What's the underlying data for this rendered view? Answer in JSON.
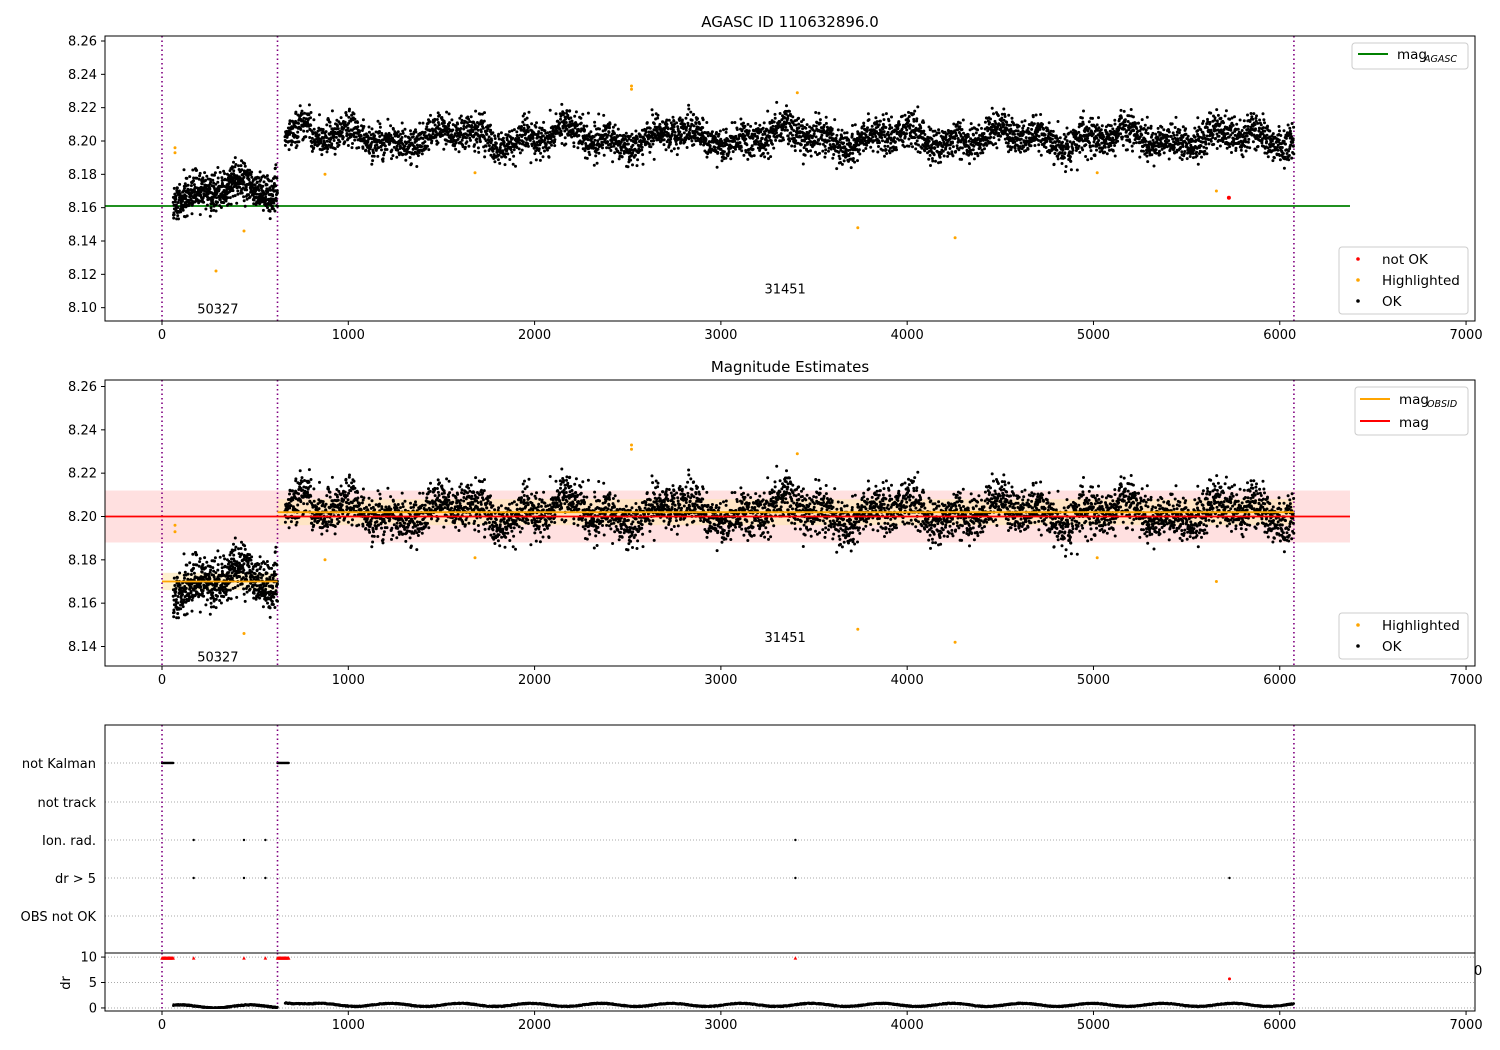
{
  "colors": {
    "ok": "#000000",
    "highlighted": "#ffa500",
    "not_ok": "#ff0000",
    "agasc": "#008000",
    "obsid_mag": "#ffa500",
    "mag": "#ff0000",
    "vline": "#800080",
    "band_mag": "#ffcccc",
    "band_obsid": "#ffe8b0"
  },
  "chart_data": [
    {
      "type": "scatter",
      "title": "AGASC ID 110632896.0",
      "xlim": [
        -306,
        7048
      ],
      "ylim": [
        8.092,
        8.263
      ],
      "xticks": [
        "0",
        "1000",
        "2000",
        "3000",
        "4000",
        "5000",
        "6000",
        "7000"
      ],
      "yticks": [
        "8.10",
        "8.12",
        "8.14",
        "8.16",
        "8.18",
        "8.20",
        "8.22",
        "8.24",
        "8.26"
      ],
      "legend_top": {
        "line_label": "mag",
        "line_sub": "AGASC"
      },
      "legend_bottom": [
        "not OK",
        "Highlighted",
        "OK"
      ],
      "hline": {
        "name": "mag_AGASC",
        "y": 8.161,
        "x": [
          -306,
          6377
        ]
      },
      "vlines": [
        0,
        620,
        6076
      ],
      "annotations": [
        {
          "text": "50327",
          "x": 300,
          "y": 8.099
        },
        {
          "text": "31451",
          "x": 3345,
          "y": 8.111
        }
      ],
      "segments": [
        {
          "obsid": "50327",
          "x": [
            60,
            620
          ],
          "mean": 8.17,
          "sd": 0.007
        },
        {
          "obsid": "31451",
          "x": [
            660,
            6076
          ],
          "mean": 8.202,
          "sd": 0.0065
        }
      ],
      "highlighted_outliers": [
        [
          290,
          8.122
        ],
        [
          440,
          8.146
        ],
        [
          3735,
          8.148
        ],
        [
          4257,
          8.142
        ],
        [
          70,
          8.196
        ],
        [
          70,
          8.193
        ],
        [
          2520,
          8.233
        ],
        [
          2520,
          8.231
        ],
        [
          3410,
          8.229
        ],
        [
          5660,
          8.17
        ],
        [
          875,
          8.18
        ],
        [
          1680,
          8.181
        ],
        [
          5020,
          8.181
        ]
      ],
      "not_ok_points": [
        [
          5727,
          8.166
        ]
      ]
    },
    {
      "type": "scatter",
      "title": "Magnitude Estimates",
      "xlim": [
        -306,
        7048
      ],
      "ylim": [
        8.131,
        8.263
      ],
      "xticks": [
        "0",
        "1000",
        "2000",
        "3000",
        "4000",
        "5000",
        "6000",
        "7000"
      ],
      "yticks": [
        "8.14",
        "8.16",
        "8.18",
        "8.20",
        "8.22",
        "8.24",
        "8.26"
      ],
      "legend_top": [
        {
          "label": "mag",
          "sub": "OBSID"
        },
        {
          "label": "mag",
          "sub": ""
        }
      ],
      "legend_bottom": [
        "Highlighted",
        "OK"
      ],
      "mag": {
        "y": 8.2,
        "band": [
          8.188,
          8.212
        ],
        "x": [
          -306,
          6377
        ]
      },
      "mag_obsid": [
        {
          "x": [
            0,
            620
          ],
          "y": 8.17,
          "band": [
            8.166,
            8.174
          ]
        },
        {
          "x": [
            620,
            6076
          ],
          "y": 8.202,
          "band": [
            8.196,
            8.208
          ]
        }
      ],
      "vlines": [
        0,
        620,
        6076
      ],
      "annotations": [
        {
          "text": "50327",
          "x": 300,
          "y": 8.135
        },
        {
          "text": "31451",
          "x": 3345,
          "y": 8.144
        }
      ]
    },
    {
      "type": "scatter",
      "categories": [
        "not Kalman",
        "not track",
        "Ion. rad.",
        "dr > 5",
        "OBS not OK"
      ],
      "flags": {
        "not Kalman": [
          [
            0,
            60
          ],
          [
            620,
            680
          ]
        ],
        "not track": [],
        "Ion. rad.": [
          [
            170
          ],
          [
            440
          ],
          [
            555
          ],
          [
            3400
          ]
        ],
        "dr > 5": [
          [
            170
          ],
          [
            440
          ],
          [
            555
          ],
          [
            3400
          ],
          [
            5730
          ]
        ],
        "OBS not OK": []
      },
      "vlines": [
        0,
        620,
        6076
      ],
      "stray_tick": "0"
    },
    {
      "type": "scatter",
      "ylabel": "dr",
      "ylim": [
        -0.6,
        10.8
      ],
      "yticks": [
        "0",
        "5",
        "10"
      ],
      "xticks": [
        "0",
        "1000",
        "2000",
        "3000",
        "4000",
        "5000",
        "6000",
        "7000"
      ],
      "clipped_points": [
        [
          0,
          60
        ],
        [
          170
        ],
        [
          440
        ],
        [
          555
        ],
        [
          620,
          680
        ],
        [
          3400
        ]
      ],
      "not_ok_points": [
        [
          5730,
          5.7
        ]
      ],
      "dr_typical": {
        "50327": 0.3,
        "31451": 0.6
      },
      "vlines": [
        0,
        620,
        6076
      ]
    }
  ]
}
